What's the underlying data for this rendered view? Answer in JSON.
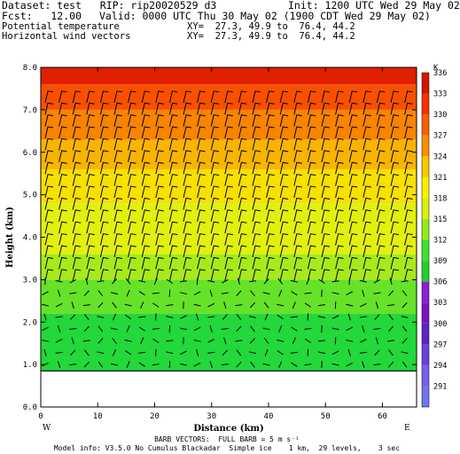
{
  "header": {
    "dataset": "Dataset: test   RIP: rip20020529 d3",
    "init": "Init: 1200 UTC Wed 29 May 02",
    "fcst": "Fcst:   12.00",
    "valid": "Valid: 0000 UTC Thu 30 May 02 (1900 CDT Wed 29 May 02)",
    "field1": "Potential temperature",
    "xy1": "XY=  27.3, 49.9 to  76.4, 44.2",
    "field2": "Horizontal wind vectors",
    "xy2": "XY=  27.3, 49.9 to  76.4, 44.2"
  },
  "footer": {
    "barb_note": "BARB VECTORS:  FULL BARB = 5 m s⁻¹",
    "model_info": "Model info: V3.5.0 No Cumulus Blackadar  Simple ice    1 km,  29 levels,    3 sec"
  },
  "chart_data": {
    "type": "heatmap",
    "title": "Potential temperature / Horizontal wind vectors",
    "xlabel": "Distance (km)",
    "ylabel": "Height (km)",
    "xlim": [
      0,
      66
    ],
    "ylim": [
      0,
      8
    ],
    "x_ticks": [
      "0",
      "10",
      "20",
      "30",
      "40",
      "50",
      "60"
    ],
    "y_ticks": [
      "0.0",
      "1.0",
      "2.0",
      "3.0",
      "4.0",
      "5.0",
      "6.0",
      "7.0",
      "8.0"
    ],
    "x_end_labels": {
      "left": "W",
      "right": "E"
    },
    "terrain_height_km": 0.85,
    "colorbar": {
      "unit": "K",
      "levels": [
        "291",
        "294",
        "297",
        "300",
        "303",
        "306",
        "309",
        "312",
        "315",
        "318",
        "321",
        "324",
        "327",
        "330",
        "333",
        "336"
      ],
      "colors": [
        "#6e78ee",
        "#7a5ef0",
        "#6a40e0",
        "#5c24c8",
        "#7a14c0",
        "#8a20d8",
        "#22d02a",
        "#40e030",
        "#98e820",
        "#d8f010",
        "#f8f000",
        "#f8c800",
        "#f89000",
        "#f86000",
        "#f83000",
        "#d01800"
      ]
    },
    "theta_layers": [
      {
        "from_km": 0.85,
        "to_km": 2.2,
        "color": "#22d83a"
      },
      {
        "from_km": 2.2,
        "to_km": 3.0,
        "color": "#66e228"
      },
      {
        "from_km": 3.0,
        "to_km": 3.6,
        "color": "#a6ea1c"
      },
      {
        "from_km": 3.6,
        "to_km": 4.8,
        "color": "#e2f00e"
      },
      {
        "from_km": 4.8,
        "to_km": 5.6,
        "color": "#f8e000"
      },
      {
        "from_km": 5.6,
        "to_km": 6.3,
        "color": "#f8b400"
      },
      {
        "from_km": 6.3,
        "to_km": 7.0,
        "color": "#f88400"
      },
      {
        "from_km": 7.0,
        "to_km": 7.6,
        "color": "#f85000"
      },
      {
        "from_km": 7.6,
        "to_km": 8.0,
        "color": "#e02000"
      }
    ]
  }
}
